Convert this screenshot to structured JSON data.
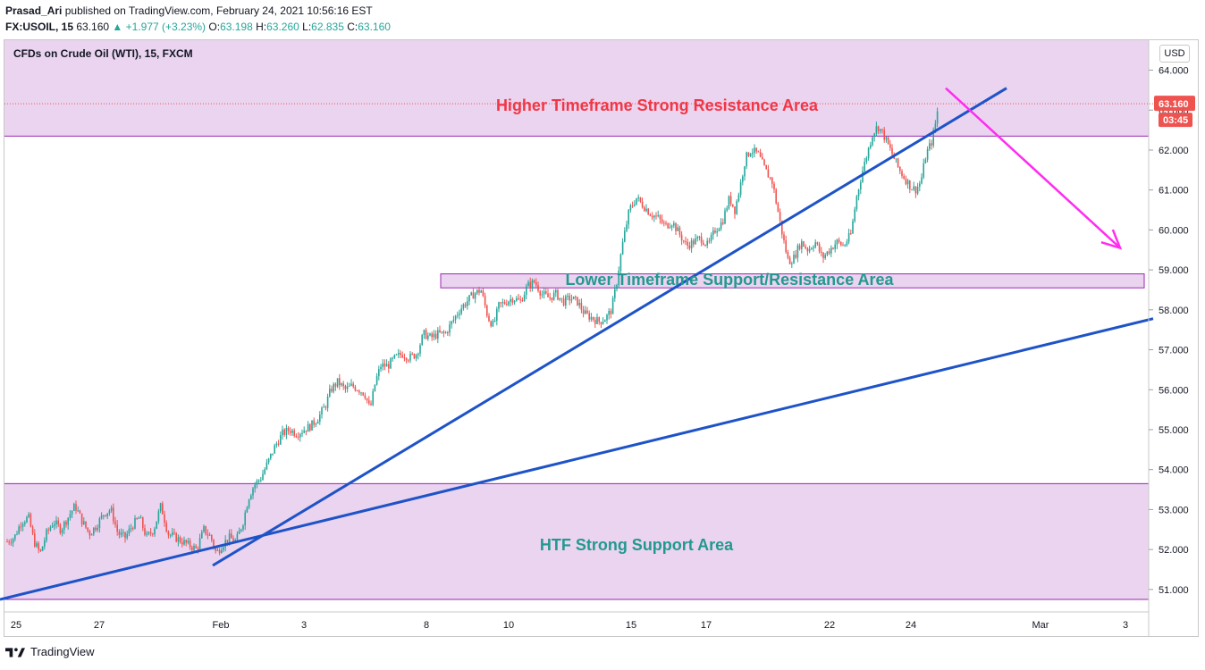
{
  "header": {
    "publisher": "Prasad_Ari",
    "published_text": "published on TradingView.com, February 24, 2021 10:56:16 EST",
    "symbol": "FX:USOIL, 15",
    "last": "63.160",
    "change": "+1.977 (+3.23%)",
    "o_label": "O:",
    "o_val": "63.198",
    "h_label": "H:",
    "h_val": "63.260",
    "l_label": "L:",
    "l_val": "62.835",
    "c_label": "C:",
    "c_val": "63.160"
  },
  "footer": {
    "brand": "TradingView"
  },
  "colors": {
    "zone_fill": "#e9d2ef",
    "zone_border": "#9c27b0",
    "trend_line": "#1e53c8",
    "arrow": "#ff2cf0",
    "up_candle": "#26a69a",
    "down_candle": "#ef5350",
    "resistance_label": "#f23645",
    "support_label": "#22998f"
  },
  "chart_data": {
    "type": "candlestick",
    "title": "CFDs on Crude Oil (WTI), 15, FXCM",
    "currency": "USD",
    "ylim": [
      50.75,
      64.75
    ],
    "y_ticks": [
      "64.000",
      "63.000",
      "62.000",
      "61.000",
      "60.000",
      "59.000",
      "58.000",
      "57.000",
      "56.000",
      "55.000",
      "54.000",
      "53.000",
      "52.000",
      "51.000"
    ],
    "x_ticks": [
      "25",
      "27",
      "Feb",
      "3",
      "8",
      "10",
      "15",
      "17",
      "22",
      "24",
      "Mar",
      "3"
    ],
    "last_price": "63.160",
    "countdown": "03:45",
    "zones": [
      {
        "label": "Higher Timeframe Strong Resistance Area",
        "from": 62.35,
        "to": 64.75
      },
      {
        "label": "Lower Timeframe Support/Resistance Area",
        "from": 58.55,
        "to": 58.9
      },
      {
        "label": "HTF Strong Support Area",
        "from": 50.75,
        "to": 53.65
      }
    ],
    "price_path": [
      [
        0,
        52.2
      ],
      [
        8,
        52.3
      ],
      [
        16,
        52.7
      ],
      [
        24,
        52.8
      ],
      [
        30,
        52.2
      ],
      [
        37,
        51.9
      ],
      [
        44,
        52.4
      ],
      [
        52,
        52.7
      ],
      [
        60,
        52.5
      ],
      [
        68,
        52.8
      ],
      [
        76,
        53.1
      ],
      [
        84,
        52.7
      ],
      [
        92,
        52.4
      ],
      [
        100,
        52.6
      ],
      [
        108,
        52.9
      ],
      [
        116,
        53.0
      ],
      [
        124,
        52.4
      ],
      [
        132,
        52.3
      ],
      [
        140,
        52.6
      ],
      [
        148,
        52.8
      ],
      [
        156,
        52.3
      ],
      [
        164,
        52.5
      ],
      [
        172,
        53.1
      ],
      [
        180,
        52.4
      ],
      [
        188,
        52.3
      ],
      [
        196,
        52.2
      ],
      [
        204,
        52.1
      ],
      [
        212,
        52.0
      ],
      [
        220,
        52.5
      ],
      [
        228,
        52.3
      ],
      [
        234,
        51.9
      ],
      [
        240,
        52.1
      ],
      [
        248,
        52.3
      ],
      [
        256,
        52.2
      ],
      [
        264,
        52.7
      ],
      [
        270,
        53.3
      ],
      [
        276,
        53.6
      ],
      [
        284,
        53.8
      ],
      [
        292,
        54.2
      ],
      [
        300,
        54.6
      ],
      [
        308,
        54.9
      ],
      [
        316,
        55.0
      ],
      [
        324,
        54.9
      ],
      [
        332,
        55.0
      ],
      [
        340,
        55.1
      ],
      [
        348,
        55.3
      ],
      [
        356,
        55.6
      ],
      [
        362,
        56.0
      ],
      [
        370,
        56.2
      ],
      [
        378,
        56.0
      ],
      [
        386,
        56.1
      ],
      [
        394,
        56.0
      ],
      [
        400,
        55.9
      ],
      [
        406,
        55.5
      ],
      [
        412,
        56.2
      ],
      [
        418,
        56.6
      ],
      [
        426,
        56.6
      ],
      [
        434,
        56.8
      ],
      [
        442,
        56.9
      ],
      [
        450,
        56.8
      ],
      [
        458,
        56.9
      ],
      [
        466,
        57.4
      ],
      [
        474,
        57.3
      ],
      [
        482,
        57.4
      ],
      [
        490,
        57.4
      ],
      [
        498,
        57.7
      ],
      [
        506,
        58.0
      ],
      [
        514,
        58.2
      ],
      [
        522,
        58.4
      ],
      [
        530,
        58.5
      ],
      [
        538,
        57.8
      ],
      [
        544,
        57.6
      ],
      [
        550,
        58.1
      ],
      [
        558,
        58.2
      ],
      [
        566,
        58.3
      ],
      [
        574,
        58.2
      ],
      [
        582,
        58.6
      ],
      [
        590,
        58.7
      ],
      [
        598,
        58.4
      ],
      [
        606,
        58.3
      ],
      [
        614,
        58.4
      ],
      [
        622,
        58.2
      ],
      [
        630,
        58.3
      ],
      [
        638,
        58.2
      ],
      [
        646,
        57.9
      ],
      [
        654,
        57.8
      ],
      [
        662,
        57.7
      ],
      [
        670,
        57.8
      ],
      [
        676,
        58.0
      ],
      [
        682,
        58.7
      ],
      [
        688,
        59.6
      ],
      [
        696,
        60.5
      ],
      [
        704,
        60.8
      ],
      [
        712,
        60.6
      ],
      [
        720,
        60.4
      ],
      [
        728,
        60.3
      ],
      [
        736,
        60.1
      ],
      [
        744,
        60.2
      ],
      [
        752,
        59.9
      ],
      [
        760,
        59.6
      ],
      [
        768,
        59.7
      ],
      [
        776,
        59.8
      ],
      [
        784,
        59.6
      ],
      [
        792,
        60.0
      ],
      [
        800,
        60.2
      ],
      [
        808,
        60.8
      ],
      [
        814,
        60.5
      ],
      [
        820,
        61.1
      ],
      [
        826,
        61.8
      ],
      [
        832,
        62.0
      ],
      [
        840,
        61.9
      ],
      [
        848,
        61.5
      ],
      [
        856,
        61.2
      ],
      [
        862,
        60.5
      ],
      [
        868,
        59.8
      ],
      [
        874,
        59.2
      ],
      [
        880,
        59.3
      ],
      [
        888,
        59.7
      ],
      [
        896,
        59.5
      ],
      [
        904,
        59.7
      ],
      [
        912,
        59.3
      ],
      [
        920,
        59.5
      ],
      [
        928,
        59.7
      ],
      [
        936,
        59.6
      ],
      [
        944,
        59.9
      ],
      [
        950,
        60.8
      ],
      [
        956,
        61.4
      ],
      [
        962,
        61.9
      ],
      [
        968,
        62.4
      ],
      [
        974,
        62.6
      ],
      [
        980,
        62.4
      ],
      [
        986,
        62.1
      ],
      [
        992,
        61.8
      ],
      [
        998,
        61.5
      ],
      [
        1004,
        61.3
      ],
      [
        1010,
        61.1
      ],
      [
        1016,
        61.0
      ],
      [
        1022,
        61.2
      ],
      [
        1028,
        61.9
      ],
      [
        1034,
        62.2
      ],
      [
        1038,
        62.6
      ],
      [
        1042,
        63.16
      ]
    ],
    "trend_lines": [
      {
        "from": [
          238,
          51.6
        ],
        "to": [
          1126,
          63.55
        ]
      },
      {
        "from": [
          0,
          50.75
        ],
        "to": [
          1290,
          57.78
        ]
      }
    ],
    "arrow": {
      "from": [
        1058,
        63.55
      ],
      "to": [
        1253,
        59.55
      ]
    }
  }
}
